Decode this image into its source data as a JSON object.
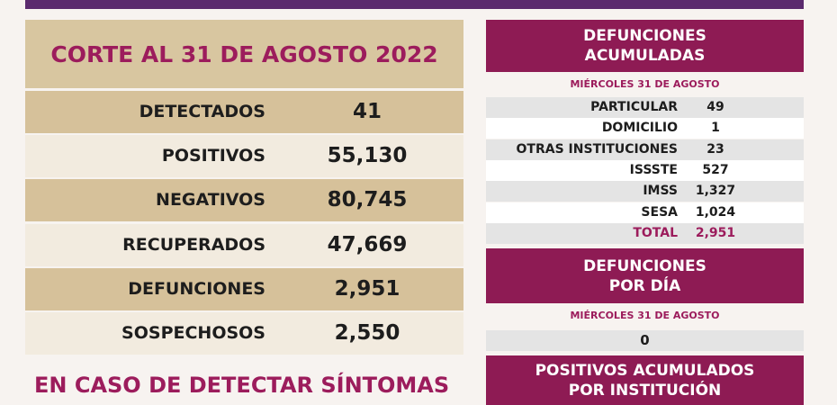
{
  "left_panel": {
    "header": "CORTE AL 31 DE AGOSTO 2022",
    "rows": [
      [
        "DETECTADOS",
        "41"
      ],
      [
        "POSITIVOS",
        "55,130"
      ],
      [
        "NEGATIVOS",
        "80,745"
      ],
      [
        "RECUPERADOS",
        "47,669"
      ],
      [
        "DEFUNCIONES",
        "2,951"
      ],
      [
        "SOSPECHOSOS",
        "2,550"
      ]
    ],
    "footer": "EN CASO DE DETECTAR SÍNTOMAS"
  },
  "right_panel": {
    "accumulated": {
      "title_lines": [
        "DEFUNCIONES",
        "ACUMULADAS"
      ],
      "date": "MIÉRCOLES 31 DE AGOSTO",
      "rows": [
        [
          "PARTICULAR",
          "49"
        ],
        [
          "DOMICILIO",
          "1"
        ],
        [
          "OTRAS INSTITUCIONES",
          "23"
        ],
        [
          "ISSSTE",
          "527"
        ],
        [
          "IMSS",
          "1,327"
        ],
        [
          "SESA",
          "1,024"
        ],
        [
          "TOTAL",
          "2,951"
        ]
      ]
    },
    "per_day": {
      "title_lines": [
        "DEFUNCIONES",
        "POR DÍA"
      ],
      "date": "MIÉRCOLES 31 DE AGOSTO",
      "value": "0"
    },
    "positives": {
      "title_lines": [
        "POSITIVOS ACUMULADOS",
        "POR INSTITUCIÓN"
      ]
    }
  }
}
